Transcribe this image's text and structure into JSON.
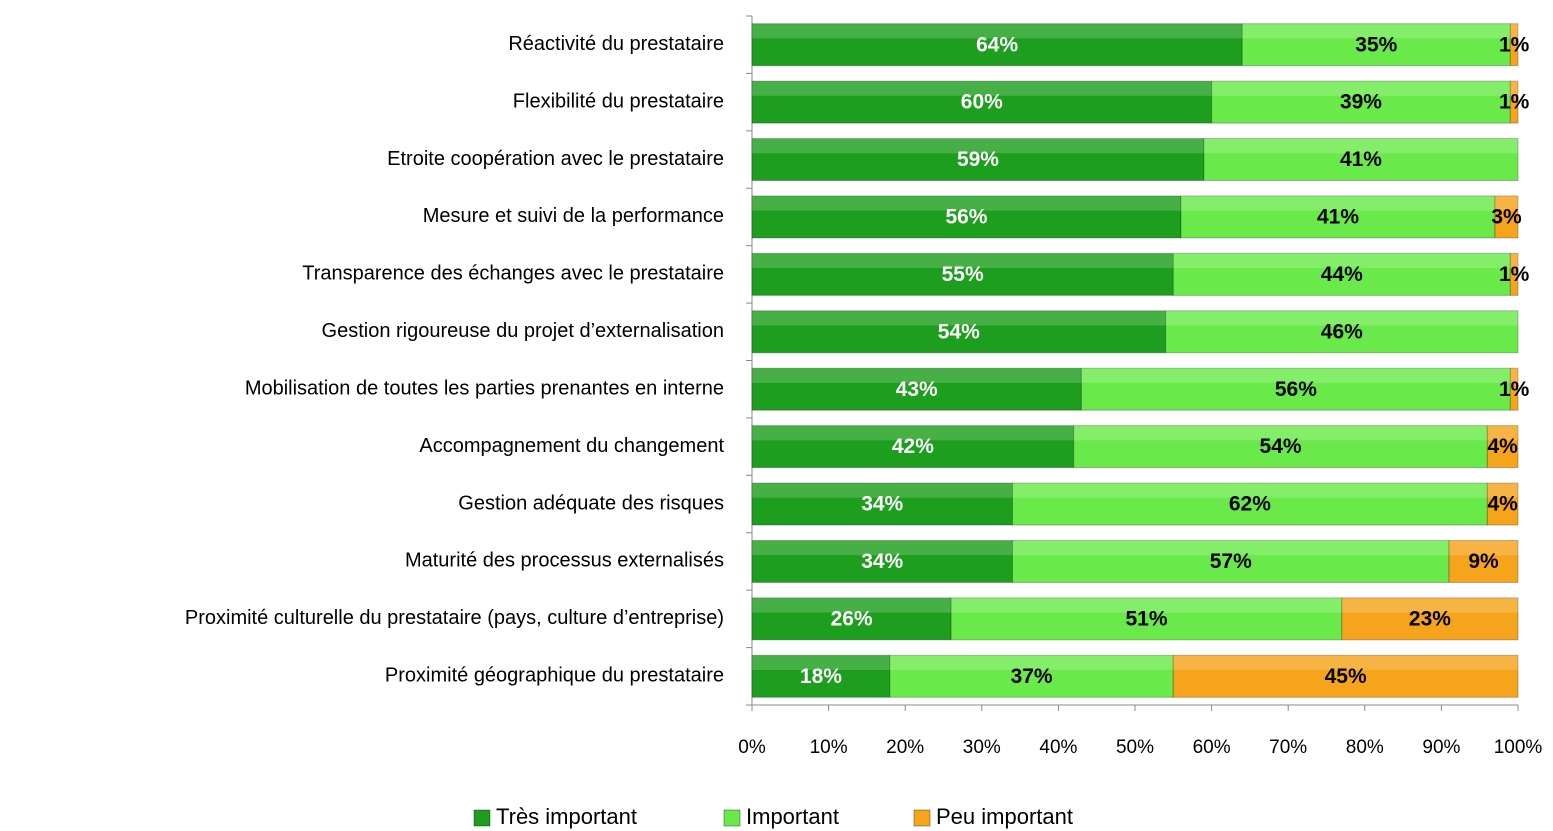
{
  "chart_data": {
    "type": "stacked-bar-horizontal",
    "categories": [
      "Réactivité du prestataire",
      "Flexibilité du prestataire",
      "Etroite coopération avec le prestataire",
      "Mesure et suivi de la performance",
      "Transparence des échanges avec le prestataire",
      "Gestion rigoureuse du projet d’externalisation",
      "Mobilisation de toutes les parties prenantes en interne",
      "Accompagnement du changement",
      "Gestion adéquate des risques",
      "Maturité des processus externalisés",
      "Proximité culturelle du prestataire (pays, culture d’entreprise)",
      "Proximité géographique du prestataire"
    ],
    "series": [
      {
        "name": "Très important",
        "color": "#1e9e1e",
        "label_color": "#ffffff",
        "values": [
          64,
          60,
          59,
          56,
          55,
          54,
          43,
          42,
          34,
          34,
          26,
          18
        ],
        "value_labels": [
          "64%",
          "60%",
          "59%",
          "56%",
          "55%",
          "54%",
          "43%",
          "42%",
          "34%",
          "34%",
          "26%",
          "18%"
        ]
      },
      {
        "name": "Important",
        "color": "#6ae94a",
        "label_color": "#000000",
        "values": [
          35,
          39,
          41,
          41,
          44,
          46,
          56,
          54,
          62,
          57,
          51,
          37
        ],
        "value_labels": [
          "35%",
          "39%",
          "41%",
          "41%",
          "44%",
          "46%",
          "56%",
          "54%",
          "62%",
          "57%",
          "51%",
          "37%"
        ]
      },
      {
        "name": "Peu important",
        "color": "#f6a41c",
        "label_color": "#000000",
        "values": [
          1,
          1,
          null,
          3,
          1,
          null,
          1,
          4,
          4,
          9,
          23,
          45
        ],
        "value_labels": [
          "1%",
          "1%",
          null,
          "3%",
          "1%",
          null,
          "1%",
          "4%",
          "4%",
          "9%",
          "23%",
          "45%"
        ]
      }
    ],
    "xlim": [
      0,
      100
    ],
    "xticks": [
      {
        "value": 0,
        "label": "0%"
      },
      {
        "value": 10,
        "label": "10%"
      },
      {
        "value": 20,
        "label": "20%"
      },
      {
        "value": 30,
        "label": "30%"
      },
      {
        "value": 40,
        "label": "40%"
      },
      {
        "value": 50,
        "label": "50%"
      },
      {
        "value": 60,
        "label": "60%"
      },
      {
        "value": 70,
        "label": "70%"
      },
      {
        "value": 80,
        "label": "80%"
      },
      {
        "value": 90,
        "label": "90%"
      },
      {
        "value": 100,
        "label": "100%"
      }
    ],
    "legend": "bottom"
  }
}
